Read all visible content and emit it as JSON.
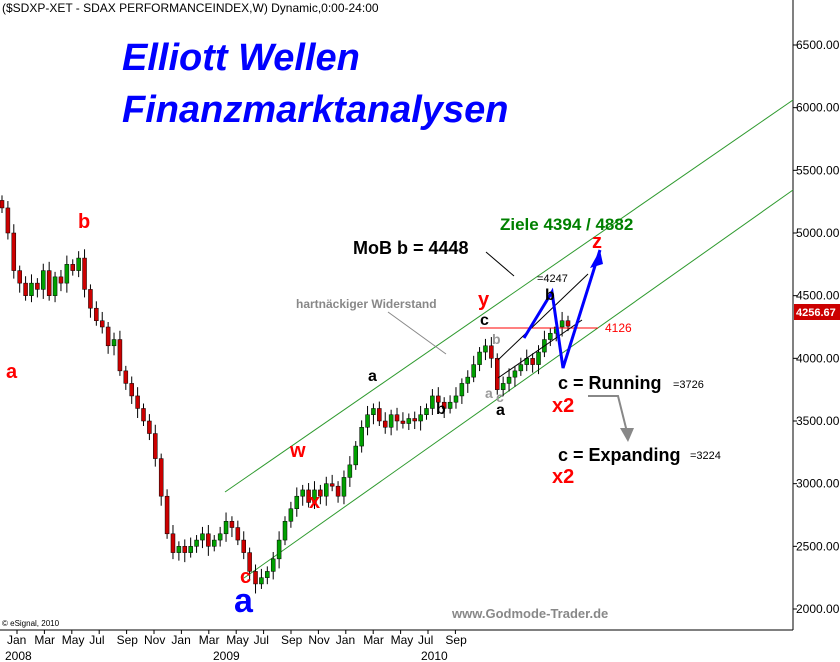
{
  "header": {
    "symbol_line": "($SDXP-XET - SDAX PERFORMANCEINDEX,W) Dynamic,0:00-24:00"
  },
  "title": {
    "line1": "Elliott Wellen",
    "line2": "Finanzmarktanalysen"
  },
  "watermark": "www.Godmode-Trader.de",
  "copyright": "© eSignal, 2010",
  "colors": {
    "blue": "#0000ff",
    "red": "#ff0000",
    "green": "#008000",
    "channel": "#2e9a2e",
    "price_tag": "#cc0000"
  },
  "annotations": {
    "ziele": "Ziele 4394 / 4882",
    "mob": "MoB b = 4448",
    "widerstand": "hartnäckiger Widerstand",
    "level_4247": "=4247",
    "level_4126": "4126",
    "running": "c = Running",
    "running_val": "=3726",
    "expanding": "c = Expanding",
    "expanding_val": "=3224",
    "price_tag": "4256.67"
  },
  "wave_labels": {
    "a_left": "a",
    "b_top": "b",
    "c_low": "c",
    "a_blue": "a",
    "w": "w",
    "x": "x",
    "a_mid": "a",
    "b_mid": "b",
    "y": "y",
    "c_y": "c",
    "b_gray": "b",
    "a_gray": "a",
    "c_gray": "c",
    "a_blk": "a",
    "b_right": "b",
    "z": "z",
    "x2_1": "x2",
    "x2_2": "x2"
  },
  "chart_data": {
    "type": "candlestick",
    "title": "($SDXP-XET - SDAX PERFORMANCEINDEX,W) Dynamic,0:00-24:00",
    "y_ticks": [
      "6500.00",
      "6000.00",
      "5500.00",
      "5000.00",
      "4500.00",
      "4000.00",
      "3500.00",
      "3000.00",
      "2500.00",
      "2000.00"
    ],
    "y_tick_values": [
      6500,
      6000,
      5500,
      5000,
      4500,
      4000,
      3500,
      3000,
      2500,
      2000
    ],
    "x_ticks": [
      "Jan",
      "Mar",
      "May",
      "Jul",
      "Sep",
      "Nov",
      "Jan",
      "Mar",
      "May",
      "Jul",
      "Sep",
      "Nov",
      "Jan",
      "Mar",
      "May",
      "Jul",
      "Sep"
    ],
    "x_years": [
      "2008",
      "2009",
      "2010"
    ],
    "ylim": [
      1700,
      6700
    ],
    "current_price": 4256.67,
    "close_series": [
      5200,
      5000,
      4700,
      4600,
      4500,
      4600,
      4550,
      4700,
      4500,
      4650,
      4600,
      4750,
      4700,
      4800,
      4550,
      4400,
      4300,
      4250,
      4100,
      4150,
      3900,
      3800,
      3700,
      3600,
      3500,
      3400,
      3200,
      2900,
      2600,
      2450,
      2500,
      2450,
      2500,
      2550,
      2600,
      2500,
      2550,
      2600,
      2700,
      2650,
      2550,
      2450,
      2300,
      2200,
      2250,
      2300,
      2400,
      2550,
      2700,
      2800,
      2900,
      2950,
      2850,
      2950,
      2900,
      3000,
      2980,
      2900,
      3050,
      3150,
      3300,
      3450,
      3550,
      3600,
      3500,
      3450,
      3550,
      3500,
      3480,
      3520,
      3500,
      3550,
      3600,
      3700,
      3650,
      3600,
      3650,
      3700,
      3800,
      3850,
      3950,
      4050,
      4100,
      4000,
      3750,
      3800,
      3850,
      3900,
      3950,
      4000,
      3950,
      4050,
      4150,
      4200,
      4250,
      4300,
      4256.67
    ]
  }
}
